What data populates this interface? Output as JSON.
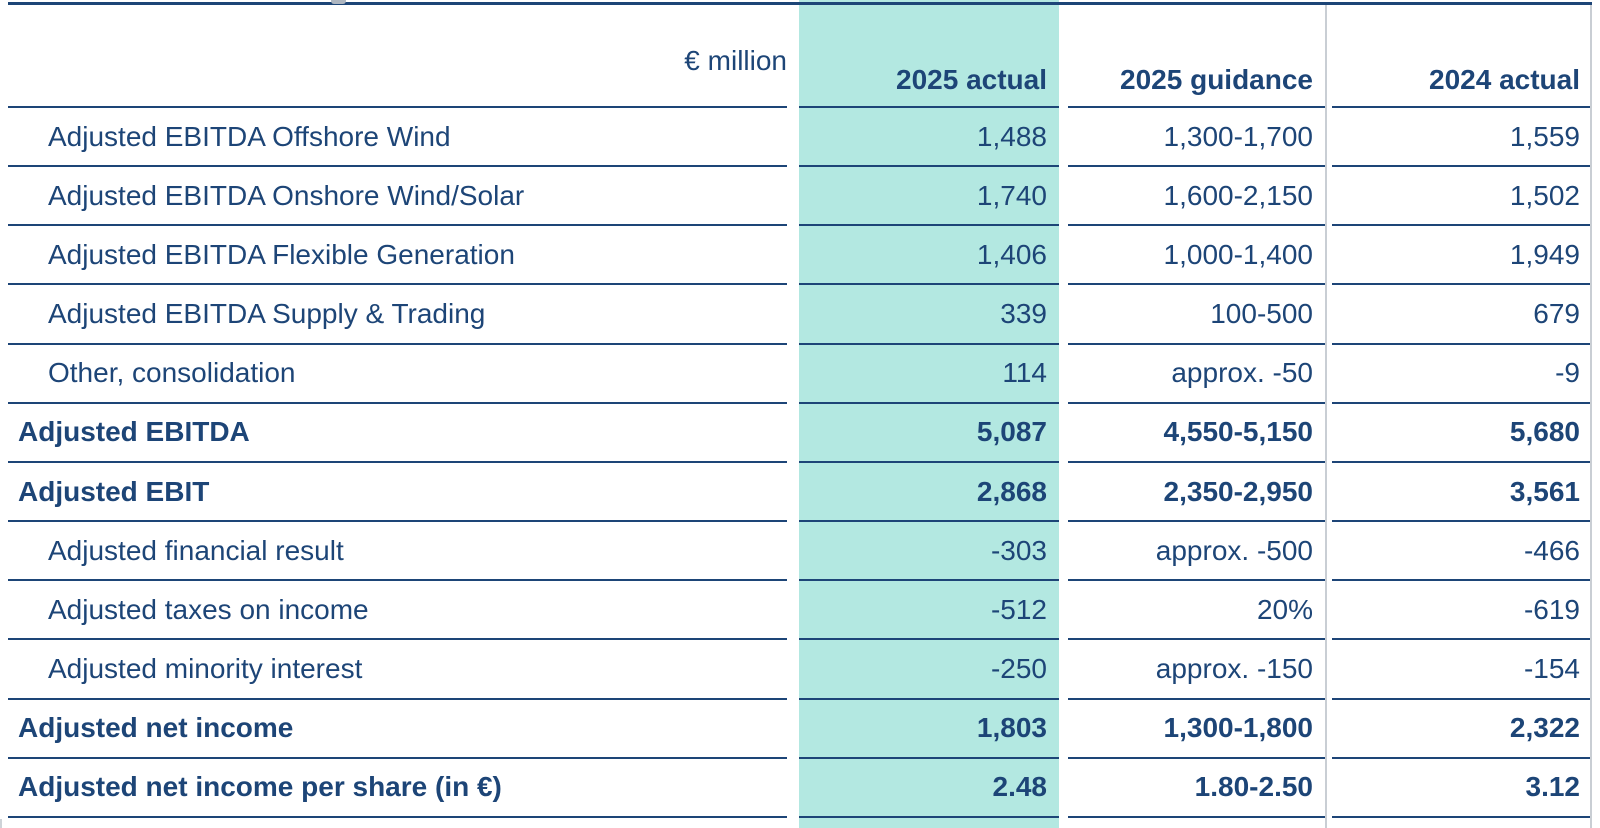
{
  "table": {
    "unit_label": "€ million",
    "columns": [
      {
        "label": "2025 actual",
        "highlighted": true
      },
      {
        "label": "2025 guidance",
        "highlighted": false
      },
      {
        "label": "2024 actual",
        "highlighted": false
      }
    ],
    "rows": [
      {
        "label": "Adjusted EBITDA Offshore Wind",
        "bold": false,
        "values": [
          "1,488",
          "1,300-1,700",
          "1,559"
        ]
      },
      {
        "label": "Adjusted EBITDA Onshore Wind/Solar",
        "bold": false,
        "values": [
          "1,740",
          "1,600-2,150",
          "1,502"
        ]
      },
      {
        "label": "Adjusted EBITDA Flexible Generation",
        "bold": false,
        "values": [
          "1,406",
          "1,000-1,400",
          "1,949"
        ]
      },
      {
        "label": "Adjusted EBITDA Supply & Trading",
        "bold": false,
        "values": [
          "339",
          "100-500",
          "679"
        ]
      },
      {
        "label": "Other, consolidation",
        "bold": false,
        "values": [
          "114",
          "approx. -50",
          "-9"
        ]
      },
      {
        "label": "Adjusted EBITDA",
        "bold": true,
        "values": [
          "5,087",
          "4,550-5,150",
          "5,680"
        ]
      },
      {
        "label": "Adjusted EBIT",
        "bold": true,
        "values": [
          "2,868",
          "2,350-2,950",
          "3,561"
        ]
      },
      {
        "label": "Adjusted financial result",
        "bold": false,
        "values": [
          "-303",
          "approx. -500",
          "-466"
        ]
      },
      {
        "label": "Adjusted taxes on income",
        "bold": false,
        "values": [
          "-512",
          "20%",
          "-619"
        ]
      },
      {
        "label": "Adjusted minority interest",
        "bold": false,
        "values": [
          "-250",
          "approx. -150",
          "-154"
        ]
      },
      {
        "label": "Adjusted net income",
        "bold": true,
        "values": [
          "1,803",
          "1,300-1,800",
          "2,322"
        ]
      },
      {
        "label": "Adjusted net income per share (in €)",
        "bold": true,
        "values": [
          "2.48",
          "1.80-2.50",
          "3.12"
        ]
      }
    ]
  },
  "colors": {
    "text_navy": "#1d4577",
    "row_line_navy": "#1d4577",
    "highlight_teal": "#b3e8e1",
    "divider_grey": "#c9ced4"
  }
}
